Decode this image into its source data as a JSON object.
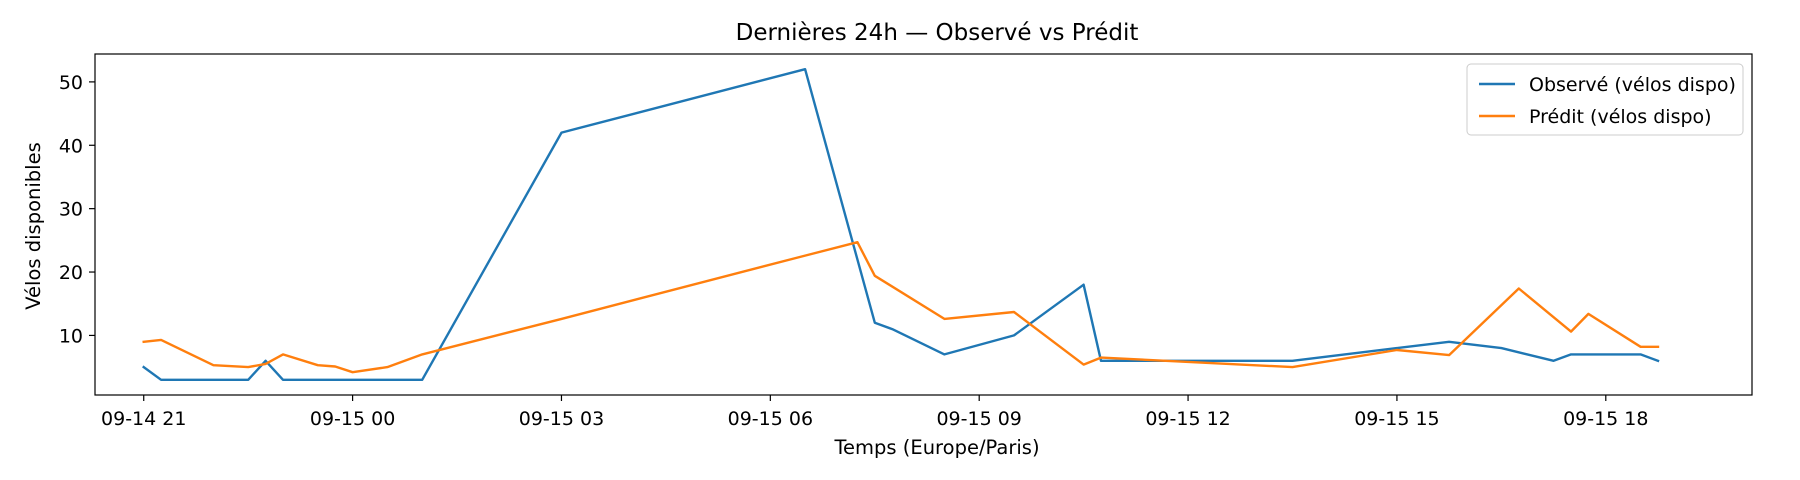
{
  "chart_data": {
    "type": "line",
    "title": "Dernières 24h — Observé vs Prédit",
    "xlabel": "Temps (Europe/Paris)",
    "ylabel": "Vélos disponibles",
    "x_axis": {
      "kind": "datetime",
      "range": [
        "2025-09-14 20:18",
        "2025-09-15 20:06"
      ],
      "ticks": [
        "2025-09-14 21:00",
        "2025-09-15 00:00",
        "2025-09-15 03:00",
        "2025-09-15 06:00",
        "2025-09-15 09:00",
        "2025-09-15 12:00",
        "2025-09-15 15:00",
        "2025-09-15 18:00"
      ],
      "tick_labels": [
        "09-14 21",
        "09-15 00",
        "09-15 03",
        "09-15 06",
        "09-15 09",
        "09-15 12",
        "09-15 15",
        "09-15 18"
      ]
    },
    "y_axis": {
      "range": [
        0.6,
        54.4
      ],
      "ticks": [
        10,
        20,
        30,
        40,
        50
      ],
      "tick_labels": [
        "10",
        "20",
        "30",
        "40",
        "50"
      ]
    },
    "grid": false,
    "legend_position": "top-right",
    "series": [
      {
        "name": "Observé (vélos dispo)",
        "color": "#1f77b4",
        "points": [
          [
            "2025-09-14 21:00",
            5
          ],
          [
            "2025-09-14 21:15",
            3
          ],
          [
            "2025-09-14 22:00",
            3
          ],
          [
            "2025-09-14 22:30",
            3
          ],
          [
            "2025-09-14 22:45",
            6
          ],
          [
            "2025-09-14 23:00",
            3
          ],
          [
            "2025-09-14 23:30",
            3
          ],
          [
            "2025-09-14 23:45",
            3
          ],
          [
            "2025-09-15 00:00",
            3
          ],
          [
            "2025-09-15 00:30",
            3
          ],
          [
            "2025-09-15 01:00",
            3
          ],
          [
            "2025-09-15 03:00",
            42
          ],
          [
            "2025-09-15 06:30",
            52
          ],
          [
            "2025-09-15 07:30",
            12
          ],
          [
            "2025-09-15 07:45",
            11
          ],
          [
            "2025-09-15 08:30",
            7
          ],
          [
            "2025-09-15 09:30",
            10
          ],
          [
            "2025-09-15 10:30",
            18
          ],
          [
            "2025-09-15 10:45",
            6
          ],
          [
            "2025-09-15 13:30",
            6
          ],
          [
            "2025-09-15 15:00",
            8
          ],
          [
            "2025-09-15 15:45",
            9
          ],
          [
            "2025-09-15 16:30",
            8
          ],
          [
            "2025-09-15 17:15",
            6
          ],
          [
            "2025-09-15 17:30",
            7
          ],
          [
            "2025-09-15 18:30",
            7
          ],
          [
            "2025-09-15 18:45",
            6
          ]
        ]
      },
      {
        "name": "Prédit (vélos dispo)",
        "color": "#ff7f0e",
        "points": [
          [
            "2025-09-14 21:00",
            9
          ],
          [
            "2025-09-14 21:15",
            9.3
          ],
          [
            "2025-09-14 22:00",
            5.3
          ],
          [
            "2025-09-14 22:30",
            5
          ],
          [
            "2025-09-14 22:45",
            5.5
          ],
          [
            "2025-09-14 23:00",
            7
          ],
          [
            "2025-09-14 23:30",
            5.3
          ],
          [
            "2025-09-14 23:45",
            5.1
          ],
          [
            "2025-09-15 00:00",
            4.2
          ],
          [
            "2025-09-15 00:30",
            5
          ],
          [
            "2025-09-15 01:00",
            7
          ],
          [
            "2025-09-15 03:00",
            12.6
          ],
          [
            "2025-09-15 06:30",
            22.6
          ],
          [
            "2025-09-15 07:15",
            24.7
          ],
          [
            "2025-09-15 07:30",
            19.4
          ],
          [
            "2025-09-15 08:30",
            12.6
          ],
          [
            "2025-09-15 09:30",
            13.7
          ],
          [
            "2025-09-15 10:30",
            5.4
          ],
          [
            "2025-09-15 10:45",
            6.5
          ],
          [
            "2025-09-15 13:30",
            5
          ],
          [
            "2025-09-15 15:00",
            7.7
          ],
          [
            "2025-09-15 15:45",
            6.9
          ],
          [
            "2025-09-15 16:45",
            17.4
          ],
          [
            "2025-09-15 17:30",
            10.6
          ],
          [
            "2025-09-15 17:45",
            13.4
          ],
          [
            "2025-09-15 18:30",
            8.2
          ],
          [
            "2025-09-15 18:45",
            8.2
          ]
        ]
      }
    ]
  }
}
